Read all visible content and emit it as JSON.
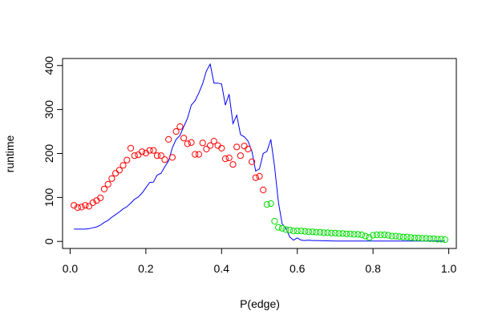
{
  "chart_data": {
    "type": "scatter",
    "xlabel": "P(edge)",
    "ylabel": "runtime",
    "xlim": [
      -0.02,
      1.02
    ],
    "ylim": [
      -16,
      416
    ],
    "xticks": [
      "0.0",
      "0.2",
      "0.4",
      "0.6",
      "0.8",
      "1.0"
    ],
    "yticks": [
      "0",
      "100",
      "200",
      "300",
      "400"
    ],
    "grid": false,
    "legend": "none",
    "colors": {
      "line": "#0000ff",
      "red": "#ff0000",
      "green": "#00dd00"
    },
    "series": [
      {
        "style": "line",
        "color": "#0000ff",
        "x": [
          0.01,
          0.02,
          0.03,
          0.04,
          0.05,
          0.06,
          0.07,
          0.08,
          0.09,
          0.1,
          0.11,
          0.12,
          0.13,
          0.14,
          0.15,
          0.16,
          0.17,
          0.18,
          0.19,
          0.2,
          0.21,
          0.22,
          0.23,
          0.24,
          0.25,
          0.26,
          0.27,
          0.28,
          0.29,
          0.3,
          0.31,
          0.32,
          0.33,
          0.34,
          0.35,
          0.36,
          0.37,
          0.38,
          0.39,
          0.4,
          0.41,
          0.42,
          0.43,
          0.44,
          0.45,
          0.46,
          0.47,
          0.48,
          0.49,
          0.5,
          0.51,
          0.52,
          0.53,
          0.54,
          0.55,
          0.56,
          0.57,
          0.58,
          0.59,
          0.6,
          0.61,
          0.62,
          0.63,
          0.64,
          0.65,
          0.7,
          0.8,
          0.9,
          0.99
        ],
        "y": [
          28,
          28,
          28,
          28,
          29,
          31,
          33,
          37,
          43,
          48,
          55,
          61,
          67,
          74,
          79,
          87,
          96,
          101,
          110,
          122,
          134,
          135,
          151,
          155,
          170,
          183,
          213,
          232,
          241,
          261,
          280,
          310,
          320,
          338,
          359,
          388,
          403,
          360,
          360,
          358,
          310,
          335,
          268,
          287,
          243,
          238,
          228,
          205,
          160,
          165,
          200,
          205,
          232,
          170,
          90,
          40,
          30,
          10,
          3,
          8,
          3,
          2,
          3,
          2,
          2,
          1,
          1,
          1,
          1
        ]
      },
      {
        "style": "points",
        "color": "#ff0000",
        "x": [
          0.01,
          0.02,
          0.03,
          0.04,
          0.05,
          0.06,
          0.07,
          0.08,
          0.09,
          0.1,
          0.11,
          0.12,
          0.13,
          0.14,
          0.15,
          0.16,
          0.17,
          0.18,
          0.19,
          0.2,
          0.21,
          0.22,
          0.23,
          0.24,
          0.25,
          0.26,
          0.27,
          0.28,
          0.29,
          0.3,
          0.31,
          0.32,
          0.33,
          0.34,
          0.35,
          0.36,
          0.37,
          0.38,
          0.39,
          0.4,
          0.41,
          0.42,
          0.43,
          0.44,
          0.45,
          0.46,
          0.47,
          0.48,
          0.49,
          0.5,
          0.51
        ],
        "y": [
          82,
          77,
          78,
          82,
          80,
          88,
          93,
          99,
          119,
          130,
          143,
          155,
          162,
          173,
          185,
          212,
          195,
          197,
          204,
          201,
          207,
          207,
          195,
          195,
          186,
          232,
          191,
          250,
          261,
          235,
          222,
          225,
          198,
          198,
          224,
          210,
          218,
          228,
          218,
          212,
          188,
          190,
          175,
          215,
          195,
          217,
          210,
          181,
          145,
          148,
          117
        ]
      },
      {
        "style": "points",
        "color": "#00dd00",
        "x": [
          0.52,
          0.53,
          0.54,
          0.55,
          0.56,
          0.57,
          0.58,
          0.59,
          0.6,
          0.61,
          0.62,
          0.63,
          0.64,
          0.65,
          0.66,
          0.67,
          0.68,
          0.69,
          0.7,
          0.71,
          0.72,
          0.73,
          0.74,
          0.75,
          0.76,
          0.77,
          0.78,
          0.79,
          0.8,
          0.81,
          0.82,
          0.83,
          0.84,
          0.85,
          0.86,
          0.87,
          0.88,
          0.89,
          0.9,
          0.91,
          0.92,
          0.93,
          0.94,
          0.95,
          0.96,
          0.97,
          0.98,
          0.99
        ],
        "y": [
          84,
          86,
          46,
          32,
          30,
          27,
          26,
          24,
          24,
          24,
          23,
          22,
          22,
          21,
          21,
          20,
          20,
          19,
          19,
          18,
          18,
          17,
          17,
          16,
          16,
          15,
          12,
          9,
          14,
          15,
          15,
          15,
          14,
          12,
          12,
          11,
          10,
          10,
          9,
          8,
          8,
          7,
          7,
          6,
          6,
          5,
          5,
          4
        ]
      }
    ]
  }
}
